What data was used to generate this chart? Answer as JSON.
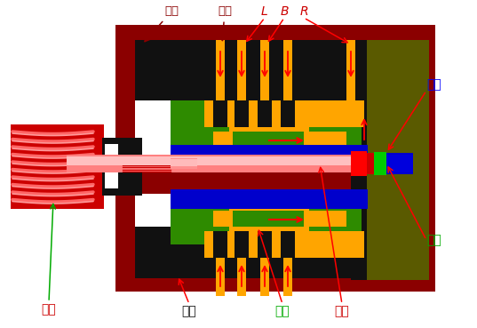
{
  "bg_color": "#ffffff",
  "colors": {
    "dark_red": "#8B0000",
    "black": "#111111",
    "white": "#ffffff",
    "green": "#2E8B00",
    "olive": "#5A5A00",
    "orange": "#FFA500",
    "blue": "#0000CC",
    "red": "#FF0000",
    "bright_green": "#00CC00",
    "pink_light": "#FFB0B0",
    "pink_mid": "#FF8080",
    "crimson": "#CC0000",
    "gear_red": "#CC0000",
    "gear_stripe": "#FF6666"
  },
  "labels": {
    "shell": {
      "text": "壳体",
      "color": "#8B0000"
    },
    "lock1": {
      "text": "锁销",
      "color": "#8B0000"
    },
    "L": {
      "text": "L",
      "color": "#CC0000"
    },
    "B": {
      "text": "B",
      "color": "#CC0000"
    },
    "R": {
      "text": "R",
      "color": "#CC0000"
    },
    "short_axis": {
      "text": "短轴",
      "color": "#0000FF"
    },
    "gear": {
      "text": "齿轮",
      "color": "#CC0000"
    },
    "valve_body": {
      "text": "阀体",
      "color": "#111111"
    },
    "valve_core": {
      "text": "阀芯",
      "color": "#00AA00"
    },
    "torsion_bar": {
      "text": "扭杆",
      "color": "#CC0000"
    },
    "lock2": {
      "text": "锁销",
      "color": "#00AA00"
    }
  }
}
